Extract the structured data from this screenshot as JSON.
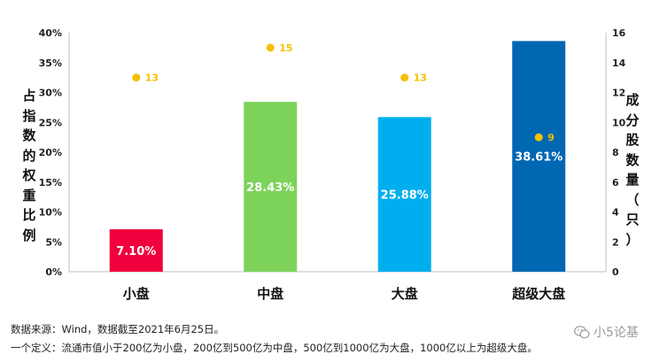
{
  "chart_data": {
    "type": "bar",
    "categories": [
      "小盘",
      "中盘",
      "大盘",
      "超级大盘"
    ],
    "series": [
      {
        "values": [
          7.1,
          28.43,
          25.88,
          38.61
        ],
        "value_labels": [
          "7.10%",
          "28.43%",
          "25.88%",
          "38.61%"
        ],
        "colors": [
          "#f0003c",
          "#7dd35a",
          "#00aeef",
          "#0067b3"
        ],
        "axis": "left"
      },
      {
        "values": [
          13,
          15,
          13,
          9
        ],
        "value_labels": [
          "13",
          "15",
          "13",
          "9"
        ],
        "color": "#f5c000",
        "axis": "right",
        "marker": "dot"
      }
    ],
    "ylabel": "占指数的权重比例",
    "ylabel_right": "成分股数量（只）",
    "ylim": [
      0,
      40
    ],
    "yticks": [
      "0%",
      "5%",
      "10%",
      "15%",
      "20%",
      "25%",
      "30%",
      "35%",
      "40%"
    ],
    "ylim_right": [
      0,
      16
    ],
    "yticks_right": [
      "0",
      "2",
      "4",
      "6",
      "8",
      "10",
      "12",
      "14",
      "16"
    ],
    "grid": false
  },
  "footnotes": {
    "source": "数据来源：Wind，数据截至2021年6月25日。",
    "definition": "一个定义：流通市值小于200亿为小盘，200亿到500亿为中盘，500亿到1000亿为大盘，1000亿以上为超级大盘。"
  },
  "watermark": {
    "text": "小5论基",
    "icon": "wechat-icon"
  }
}
